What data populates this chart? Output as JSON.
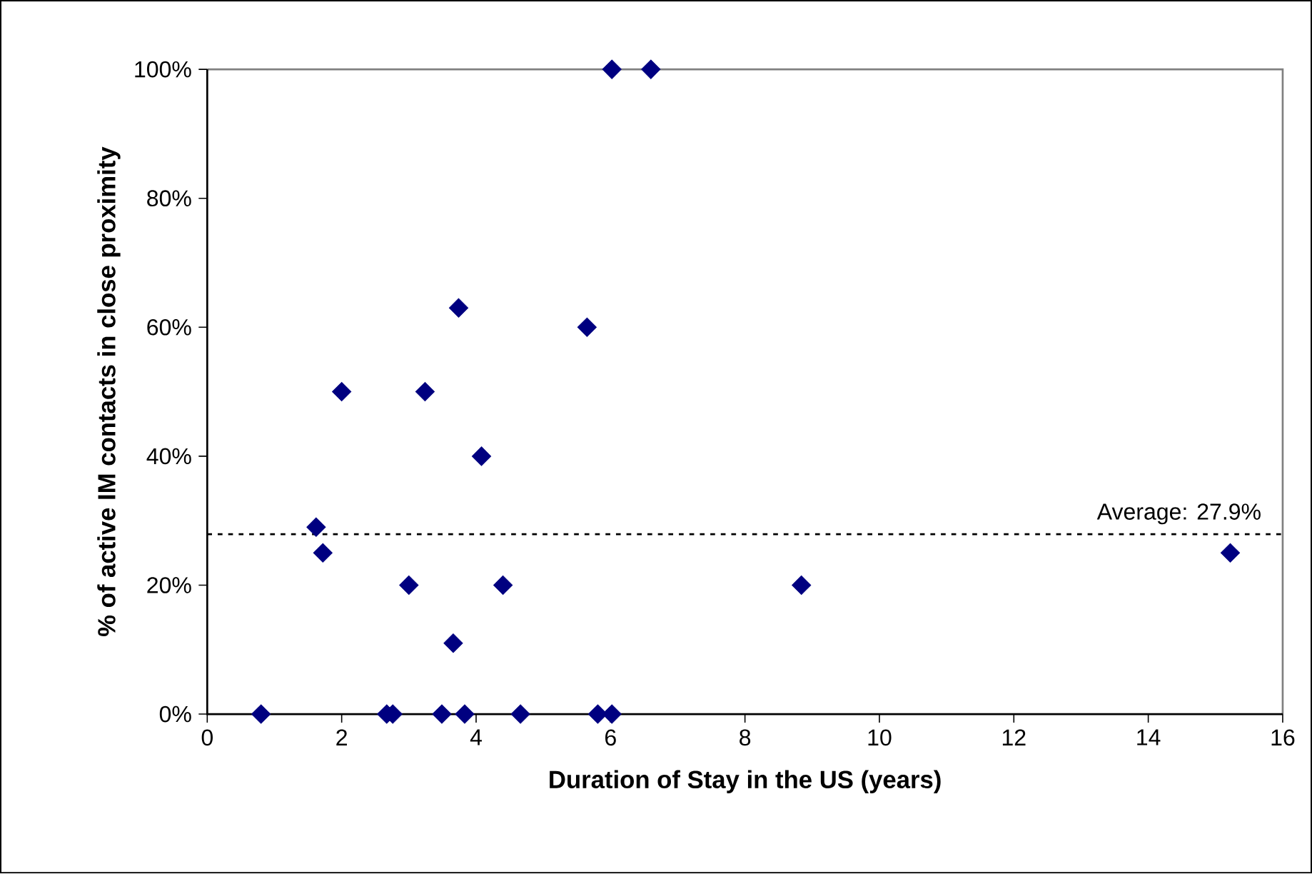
{
  "chart_data": {
    "type": "scatter",
    "xlabel": "Duration of Stay in the US (years)",
    "ylabel": "% of active IM contacts in close proximity",
    "x": [
      0.8,
      1.62,
      1.72,
      2.0,
      2.67,
      2.76,
      3.0,
      3.24,
      3.49,
      3.74,
      3.66,
      3.83,
      4.08,
      4.4,
      4.66,
      5.65,
      5.81,
      6.02,
      6.02,
      6.6,
      8.84,
      15.22
    ],
    "series": [
      {
        "color": "#000080",
        "values": [
          0,
          29,
          25,
          50,
          0,
          0,
          20,
          50,
          0,
          63,
          11,
          0,
          40,
          20,
          0,
          60,
          0,
          0,
          100,
          100,
          20,
          25
        ]
      }
    ],
    "xlim": [
      0,
      16
    ],
    "xticks": [
      0,
      2,
      4,
      6,
      8,
      10,
      12,
      14,
      16
    ],
    "ylim": [
      0,
      100
    ],
    "yticks": [
      {
        "value": 0,
        "label": "0%"
      },
      {
        "value": 20,
        "label": "20%"
      },
      {
        "value": 40,
        "label": "40%"
      },
      {
        "value": 60,
        "label": "60%"
      },
      {
        "value": 80,
        "label": "80%"
      },
      {
        "value": 100,
        "label": "100%"
      }
    ],
    "ref_lines": [
      {
        "axis": "y",
        "value": 27.9,
        "label": "Average: 27.9%",
        "line_style": "dotted",
        "color": "#000000"
      }
    ],
    "marker": "diamond",
    "grid": false
  }
}
